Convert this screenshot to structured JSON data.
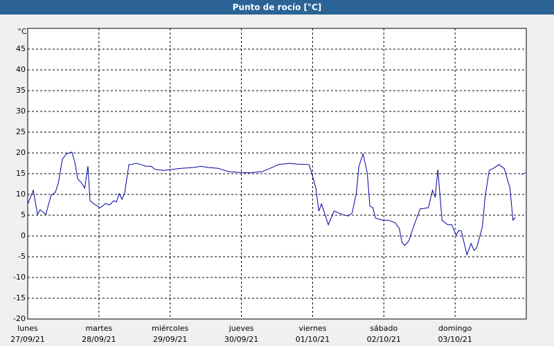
{
  "chart_data": {
    "type": "line",
    "title": "Punto de rocío [°C]",
    "y_unit": "°C",
    "xlim": [
      0,
      168
    ],
    "xticks": [
      {
        "value": 0,
        "label": "lunes"
      },
      {
        "value": 24,
        "label": "martes"
      },
      {
        "value": 48,
        "label": "miércoles"
      },
      {
        "value": 72,
        "label": "jueves"
      },
      {
        "value": 96,
        "label": "viernes"
      },
      {
        "value": 120,
        "label": "sábado"
      },
      {
        "value": 144,
        "label": "domingo"
      }
    ],
    "xtick_dates": [
      "27/09/21",
      "28/09/21",
      "29/09/21",
      "30/09/21",
      "01/10/21",
      "02/10/21",
      "03/10/21"
    ],
    "ylim": [
      -20,
      50
    ],
    "yticks": [
      -20,
      -15,
      -10,
      -5,
      0,
      5,
      10,
      15,
      20,
      25,
      30,
      35,
      40,
      45
    ],
    "grid": true,
    "series": [
      {
        "name": "Punto de rocío",
        "color": "#0000a0",
        "x": [
          0,
          0.9,
          1.9,
          3.3,
          4.2,
          6.1,
          7.9,
          9.3,
          10.3,
          11.7,
          13.1,
          14.9,
          15.9,
          16.8,
          18.2,
          19.2,
          20.3,
          21,
          22.4,
          24.3,
          25.2,
          26.2,
          27.6,
          29,
          29.9,
          30.8,
          31.8,
          32.7,
          34.1,
          35,
          36.4,
          38.3,
          39.7,
          41.6,
          43,
          45.8,
          48.1,
          51.8,
          56,
          58.4,
          60.7,
          64.2,
          67.7,
          71.5,
          74.7,
          79,
          81.7,
          84.5,
          88.3,
          91.1,
          94.8,
          95.7,
          97.1,
          98.1,
          99,
          101.3,
          103.2,
          106,
          107.9,
          109.3,
          110.7,
          111.6,
          113,
          114.4,
          115.3,
          116.3,
          117.2,
          119.6,
          121.4,
          123.8,
          125.2,
          126.1,
          127,
          128.4,
          129.8,
          132.2,
          135,
          136.4,
          137.3,
          138.2,
          139.6,
          141.5,
          142.9,
          144.3,
          145.2,
          146.1,
          148,
          149.4,
          150.4,
          151.3,
          153.2,
          154.1,
          155.5,
          156.9,
          158.8,
          160.6,
          162.5,
          163.5,
          164.4,
          165.4,
          166.3,
          167.7
        ],
        "values": [
          7.7,
          9.3,
          11,
          5.2,
          6.3,
          5.2,
          9.8,
          10.5,
          12.7,
          18.5,
          19.8,
          20.2,
          17.7,
          13.8,
          12.7,
          11.5,
          16.8,
          8.5,
          7.7,
          6.8,
          7.2,
          7.8,
          7.5,
          8.5,
          8.2,
          10.2,
          8.8,
          10.5,
          17.2,
          17.2,
          17.5,
          17.2,
          16.8,
          16.8,
          16,
          15.8,
          16,
          16.3,
          16.5,
          16.8,
          16.5,
          16.3,
          15.5,
          15.3,
          15.2,
          15.5,
          16.3,
          17.2,
          17.5,
          17.3,
          17.2,
          15.2,
          11.5,
          6,
          7.7,
          2.7,
          6,
          5.2,
          4.8,
          5.5,
          10.2,
          16.8,
          19.8,
          15.2,
          7.2,
          6.8,
          4.3,
          3.8,
          3.8,
          3.2,
          1.8,
          -1.5,
          -2.3,
          -1.2,
          1.8,
          6.5,
          6.8,
          11,
          9.3,
          16,
          3.8,
          2.7,
          2.7,
          0.2,
          1.3,
          1.2,
          -4.5,
          -1.8,
          -3.5,
          -2.8,
          2.2,
          9.3,
          15.8,
          16.3,
          17.2,
          16.2,
          11.5,
          3.8,
          4.5,
          null,
          14.8,
          15.2
        ]
      }
    ]
  }
}
